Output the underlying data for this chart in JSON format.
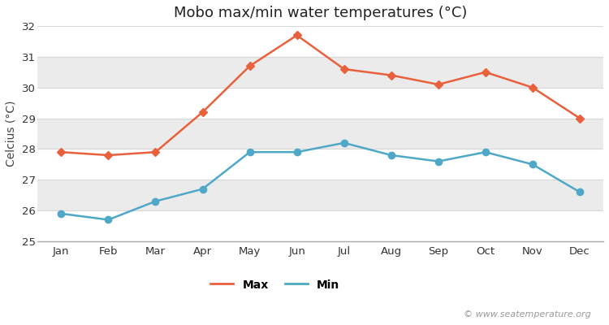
{
  "title": "Mobo max/min water temperatures (°C)",
  "ylabel": "Celcius (°C)",
  "months": [
    "Jan",
    "Feb",
    "Mar",
    "Apr",
    "May",
    "Jun",
    "Jul",
    "Aug",
    "Sep",
    "Oct",
    "Nov",
    "Dec"
  ],
  "max_temps": [
    27.9,
    27.8,
    27.9,
    29.2,
    30.7,
    31.7,
    30.6,
    30.4,
    30.1,
    30.5,
    30.0,
    29.0
  ],
  "min_temps": [
    25.9,
    25.7,
    26.3,
    26.7,
    27.9,
    27.9,
    28.2,
    27.8,
    27.6,
    27.9,
    27.5,
    26.6
  ],
  "max_color": "#e8603c",
  "min_color": "#4fa8c8",
  "fig_bg_color": "#ffffff",
  "band_colors": [
    "#ffffff",
    "#ebebeb"
  ],
  "grid_line_color": "#d8d8d8",
  "ylim": [
    25,
    32
  ],
  "yticks": [
    25,
    26,
    27,
    28,
    29,
    30,
    31,
    32
  ],
  "legend_max": "Max",
  "legend_min": "Min",
  "watermark": "© www.seatemperature.org",
  "title_fontsize": 13,
  "label_fontsize": 10,
  "tick_fontsize": 9.5,
  "legend_fontsize": 10,
  "watermark_fontsize": 8
}
